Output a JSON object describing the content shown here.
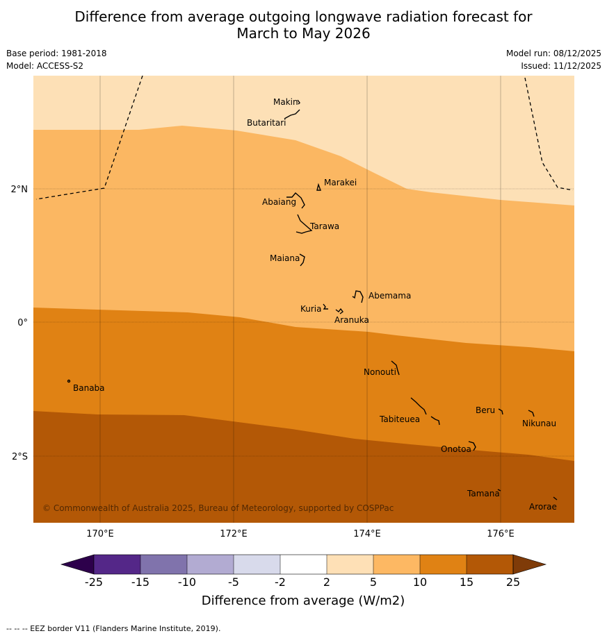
{
  "header": {
    "title_line1": "Difference from average outgoing longwave radiation forecast for",
    "title_line2": "March to May 2026",
    "base_period": "Base period: 1981-2018",
    "model": "Model: ACCESS-S2",
    "model_run": "Model run: 08/12/2025",
    "issued": "Issued: 11/12/2025"
  },
  "map": {
    "longitude_labels": [
      "170°E",
      "172°E",
      "174°E",
      "176°E"
    ],
    "latitude_labels": [
      "2°N",
      "0°",
      "2°S"
    ],
    "copyright": "© Commonwealth of Australia 2025, Bureau of Meteorology, supported by COSPPac",
    "islands": [
      {
        "name": "Makin"
      },
      {
        "name": "Butaritari"
      },
      {
        "name": "Marakei"
      },
      {
        "name": "Abaiang"
      },
      {
        "name": "Tarawa"
      },
      {
        "name": "Maiana"
      },
      {
        "name": "Abemama"
      },
      {
        "name": "Kuria"
      },
      {
        "name": "Aranuka"
      },
      {
        "name": "Nonouti"
      },
      {
        "name": "Banaba"
      },
      {
        "name": "Tabiteuea"
      },
      {
        "name": "Beru"
      },
      {
        "name": "Nikunau"
      },
      {
        "name": "Onotoa"
      },
      {
        "name": "Tamana"
      },
      {
        "name": "Arorae"
      }
    ],
    "band_colors": [
      "#fde0b6",
      "#fbb762",
      "#e08214",
      "#b35806"
    ]
  },
  "colorbar": {
    "ticks": [
      "-25",
      "-15",
      "-10",
      "-5",
      "-2",
      "2",
      "5",
      "10",
      "15",
      "25"
    ],
    "colors": [
      "#2d004b",
      "#542788",
      "#8073ac",
      "#b2abd2",
      "#d8daeb",
      "#ffffff",
      "#fee0b6",
      "#fdb863",
      "#e08214",
      "#b35806",
      "#7f3b08"
    ],
    "title": "Difference from average (W/m2)"
  },
  "footer": {
    "eez_note": "--  --  -- EEZ border V11 (Flanders Marine Institute, 2019)."
  }
}
